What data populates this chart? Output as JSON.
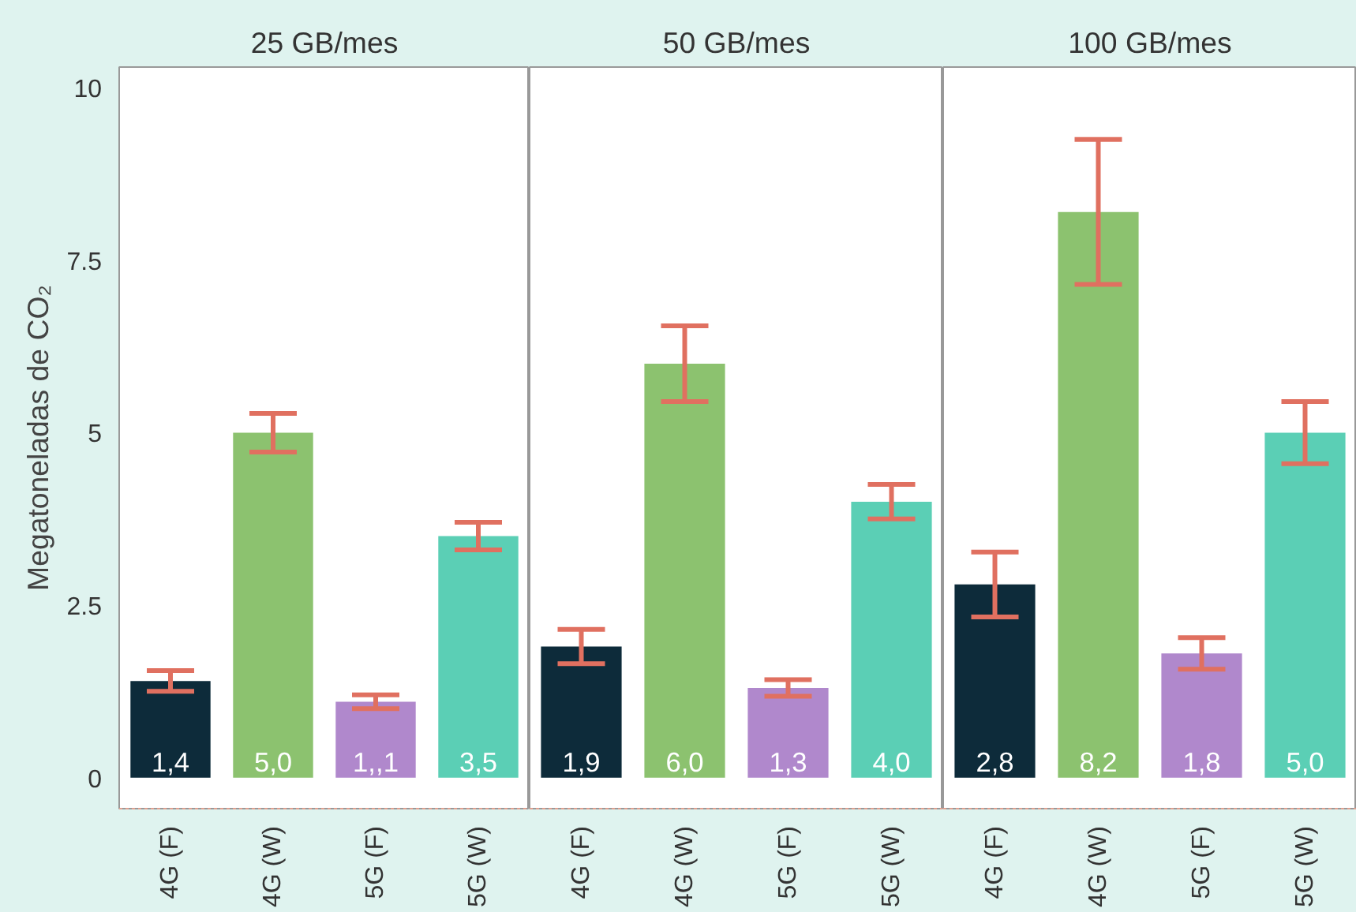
{
  "chart_data": [
    {
      "type": "bar",
      "title": "25 GB/mes",
      "ylabel": "Megatoneladas de CO₂",
      "categories": [
        "4G (F)",
        "4G (W)",
        "5G (F)",
        "5G (W)"
      ],
      "values": [
        1.4,
        5.0,
        1.1,
        3.5
      ],
      "colors": [
        "#0d2b3a",
        "#8cc26f",
        "#b088cc",
        "#5bcfb5"
      ],
      "errors": [
        0.15,
        0.28,
        0.1,
        0.2
      ],
      "value_labels": [
        "1,4",
        "5,0",
        "1,,1",
        "3,5"
      ],
      "ylim": [
        -0.45,
        10.3
      ],
      "yticks": [
        0,
        2.5,
        5,
        7.5,
        10
      ],
      "grid": false
    },
    {
      "type": "bar",
      "title": "50 GB/mes",
      "categories": [
        "4G (F)",
        "4G (W)",
        "5G (F)",
        "5G (W)"
      ],
      "values": [
        1.9,
        6.0,
        1.3,
        4.0
      ],
      "colors": [
        "#0d2b3a",
        "#8cc26f",
        "#b088cc",
        "#5bcfb5"
      ],
      "errors": [
        0.25,
        0.55,
        0.12,
        0.25
      ],
      "value_labels": [
        "1,9",
        "6,0",
        "1,3",
        "4,0"
      ],
      "ylim": [
        -0.45,
        10.3
      ],
      "yticks": [
        0,
        2.5,
        5,
        7.5,
        10
      ],
      "tick_labels": "x",
      "grid": false
    },
    {
      "type": "bar",
      "title": "100 GB/mes",
      "categories": [
        "4G (F)",
        "4G (W)",
        "5G (F)",
        "5G (W)"
      ],
      "values": [
        2.8,
        8.2,
        1.8,
        5.0
      ],
      "colors": [
        "#0d2b3a",
        "#8cc26f",
        "#b088cc",
        "#5bcfb5"
      ],
      "errors": [
        0.47,
        1.05,
        0.23,
        0.45
      ],
      "value_labels": [
        "2,8",
        "8,2",
        "1,8",
        "5,0"
      ],
      "ylim": [
        -0.45,
        10.3
      ],
      "yticks": [
        0,
        2.5,
        5,
        7.5,
        10
      ],
      "tick_labels": "x",
      "grid": false
    }
  ]
}
